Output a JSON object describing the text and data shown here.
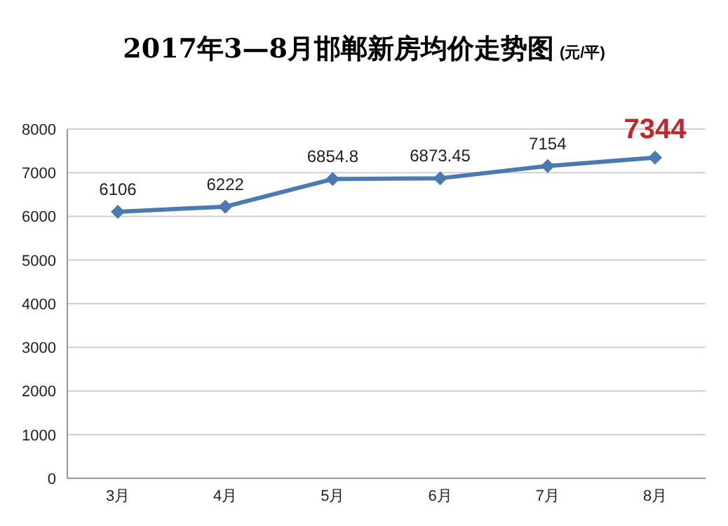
{
  "chart_data": {
    "type": "line",
    "title": "2017年3—8月邯郸新房均价走势图",
    "subtitle": "(元/平)",
    "categories": [
      "3月",
      "4月",
      "5月",
      "6月",
      "7月",
      "8月"
    ],
    "series": [
      {
        "color": "#4a7ab0",
        "values": [
          6106,
          6222,
          6854.8,
          6873.45,
          7154,
          7344
        ]
      }
    ],
    "ylim": [
      0,
      8000
    ],
    "yticks": [
      0,
      1000,
      2000,
      3000,
      4000,
      5000,
      6000,
      7000,
      8000
    ],
    "grid": "y",
    "marker": "diamond",
    "line_style": "solid",
    "data_labels": true
  }
}
